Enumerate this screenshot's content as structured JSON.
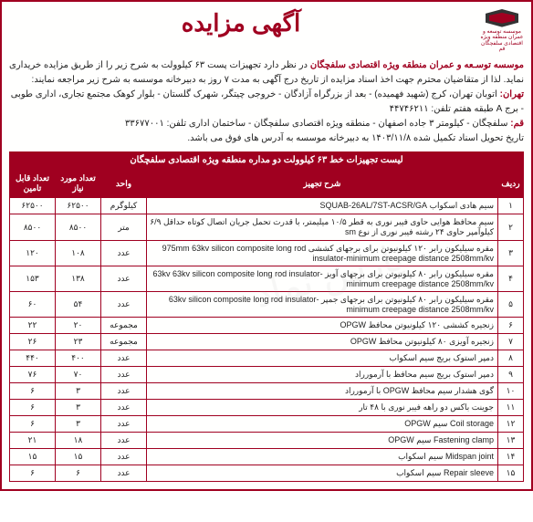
{
  "colors": {
    "brand": "#a00020",
    "text": "#222222",
    "bg": "#fffffe"
  },
  "logo_text": "موسسه توسعه و عمران\nمنطقه ویژه اقتصادی سلفچگان قم",
  "title": "آگهی مزایده",
  "intro_lead": "موسسه توسـعه و عمران منطقه ویژه اقتصادی سلفچگان",
  "intro_rest": " در نظر دارد تجهیزات پست ۶۳ کیلوولت به شرح زیر را از طریق مزایده خریداری نماید. لذا از متقاضیان محترم جهت اخذ اسناد مزایده از تاریخ درج آگهی به مدت ۷ روز به دبیرخانه موسسه به شرح زیر مراجعه نمایند:",
  "addr_tehran_label": "تهران:",
  "addr_tehran": " اتوبان تهران، کرج (شهید فهمیده) - بعد از بزرگراه آزادگان - خروجی چیتگر، شهرک گلستان - بلوار کوهک مجتمع تجاری، اداری طوبی - برج A طبقه هفتم تلفن: ۴۴۷۴۶۲۱۱",
  "addr_qom_label": "قم:",
  "addr_qom": " سلفچگان - کیلومتر ۳ جاده اصفهان - منطقه ویژه اقتصادی سلفچگان - ساختمان اداری تلفن: ۳۳۶۷۷۰۰۱",
  "deadline": "تاریخ تحویل اسناد تکمیل شده ۱۴۰۳/۱۱/۸ به دبیرخانه موسسه به آدرس های فوق می باشد.",
  "table_title": "لیست تجهیزات خط ۶۳ کیلوولت دو مداره منطقه ویژه اقتصادی سلفچگان",
  "headers": {
    "idx": "ردیف",
    "desc": "شرح تجهیز",
    "unit": "واحد",
    "need": "تعداد مورد نیاز",
    "supply": "تعداد قابل تامین"
  },
  "rows": [
    {
      "idx": "۱",
      "desc": "سیم هادی اسکواب SQUAB-26AL/7ST-ACSR/GA",
      "unit": "کیلوگرم",
      "need": "۶۲۵۰۰",
      "supply": "۶۲۵۰۰"
    },
    {
      "idx": "۲",
      "desc": "سیم محافظ هوایی حاوی فیبر نوری به قطر ۱۰/۵ میلیمتر، با قدرت تحمل جریان اتصال کوتاه حداقل ۶/۹ کیلوآمپر حاوی ۲۴ رشته فیبر نوری از نوع sm",
      "unit": "متر",
      "need": "۸۵۰۰",
      "supply": "۸۵۰۰"
    },
    {
      "idx": "۳",
      "desc": "مقره سیلیکون رابر ۱۲۰ کیلونیوتن برای برجهای کششی 975mm\n63kv silicon composite long rod insulator-minimum creepage distance 2508mm/kv",
      "unit": "عدد",
      "need": "۱۰۸",
      "supply": "۱۲۰"
    },
    {
      "idx": "۴",
      "desc": "مقره سیلیکون رابر ۸۰ کیلونیوتن برای برجهای آویز 63kv\n63kv silicon composite long rod insulator-minimum creepage distance 2508mm/kv",
      "unit": "عدد",
      "need": "۱۳۸",
      "supply": "۱۵۳"
    },
    {
      "idx": "۵",
      "desc": "مقره سیلیکون رابر ۸۰ کیلونیوتن برای برجهای جمپر\n63kv silicon composite long rod insulator-minimum creepage distance 2508mm/kv",
      "unit": "عدد",
      "need": "۵۴",
      "supply": "۶۰"
    },
    {
      "idx": "۶",
      "desc": "زنجیره کششی ۱۲۰ کیلونیوتن محافظ OPGW",
      "unit": "مجموعه",
      "need": "۲۰",
      "supply": "۲۲"
    },
    {
      "idx": "۷",
      "desc": "زنجیره آویزی ۸۰ کیلونیوتن محافظ OPGW",
      "unit": "مجموعه",
      "need": "۲۳",
      "supply": "۲۶"
    },
    {
      "idx": "۸",
      "desc": "دمپر استوک بریج سیم اسکواب",
      "unit": "عدد",
      "need": "۴۰۰",
      "supply": "۴۴۰"
    },
    {
      "idx": "۹",
      "desc": "دمپر استوک بریج سیم محافظ با آرمورراد",
      "unit": "عدد",
      "need": "۷۰",
      "supply": "۷۶"
    },
    {
      "idx": "۱۰",
      "desc": "گوی هشدار سیم محافظ OPGW با آرمورراد",
      "unit": "عدد",
      "need": "۳",
      "supply": "۶"
    },
    {
      "idx": "۱۱",
      "desc": "جوینت باکس دو راهه فیبر نوری با ۴۸ تار",
      "unit": "عدد",
      "need": "۳",
      "supply": "۶"
    },
    {
      "idx": "۱۲",
      "desc": "Coil storage سیم OPGW",
      "unit": "عدد",
      "need": "۳",
      "supply": "۶"
    },
    {
      "idx": "۱۳",
      "desc": "Fastening clamp سیم OPGW",
      "unit": "عدد",
      "need": "۱۸",
      "supply": "۲۱"
    },
    {
      "idx": "۱۴",
      "desc": "Midspan joint سیم اسکواب",
      "unit": "عدد",
      "need": "۱۵",
      "supply": "۱۵"
    },
    {
      "idx": "۱۵",
      "desc": "Repair sleeve سیم اسکواب",
      "unit": "عدد",
      "need": "۶",
      "supply": "۶"
    }
  ],
  "watermark": "پارس نماد"
}
